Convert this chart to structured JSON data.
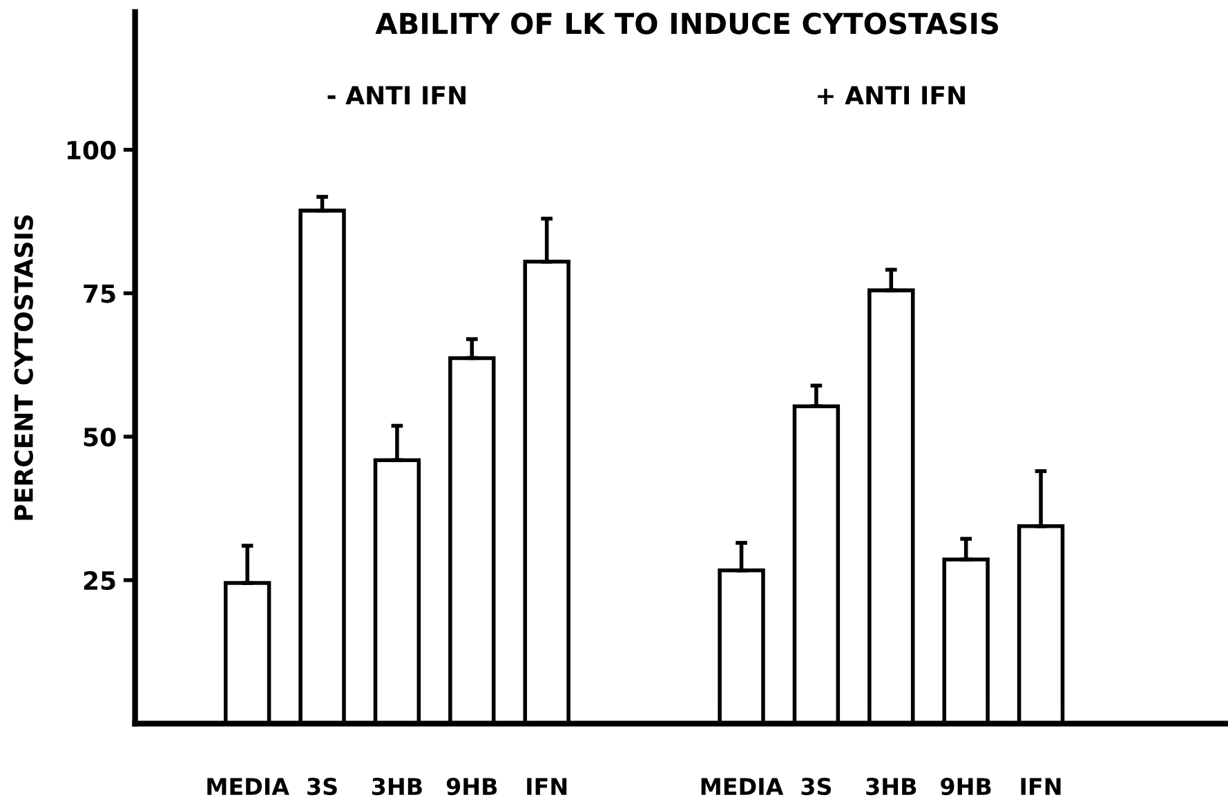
{
  "chart_data": {
    "type": "bar",
    "title": "ABILITY OF LK TO INDUCE CYTOSTASIS",
    "ylabel": "PERCENT CYTOSTASIS",
    "categories": [
      "MEDIA",
      "3S",
      "3HB",
      "9HB",
      "IFN",
      "MEDIA",
      "3S",
      "3HB",
      "9HB",
      "IFN"
    ],
    "values": [
      24.5,
      89.4,
      45.9,
      63.7,
      80.5,
      26.7,
      55.3,
      75.5,
      28.6,
      34.4
    ],
    "errors": [
      [
        24.5,
        31
      ],
      [
        89.4,
        91.8
      ],
      [
        45.9,
        51.9
      ],
      [
        63.7,
        67
      ],
      [
        80.5,
        88
      ],
      [
        26.7,
        31.5
      ],
      [
        55.3,
        58.9
      ],
      [
        75.5,
        79.1
      ],
      [
        28.6,
        32.2
      ],
      [
        34.4,
        44
      ]
    ],
    "color": "#ffffff",
    "ylim": [
      0,
      124
    ],
    "yticks": [
      25,
      50,
      75,
      100
    ],
    "grid": false,
    "annotations": [
      "- ANTI IFN",
      "+ ANTI IFN"
    ]
  }
}
